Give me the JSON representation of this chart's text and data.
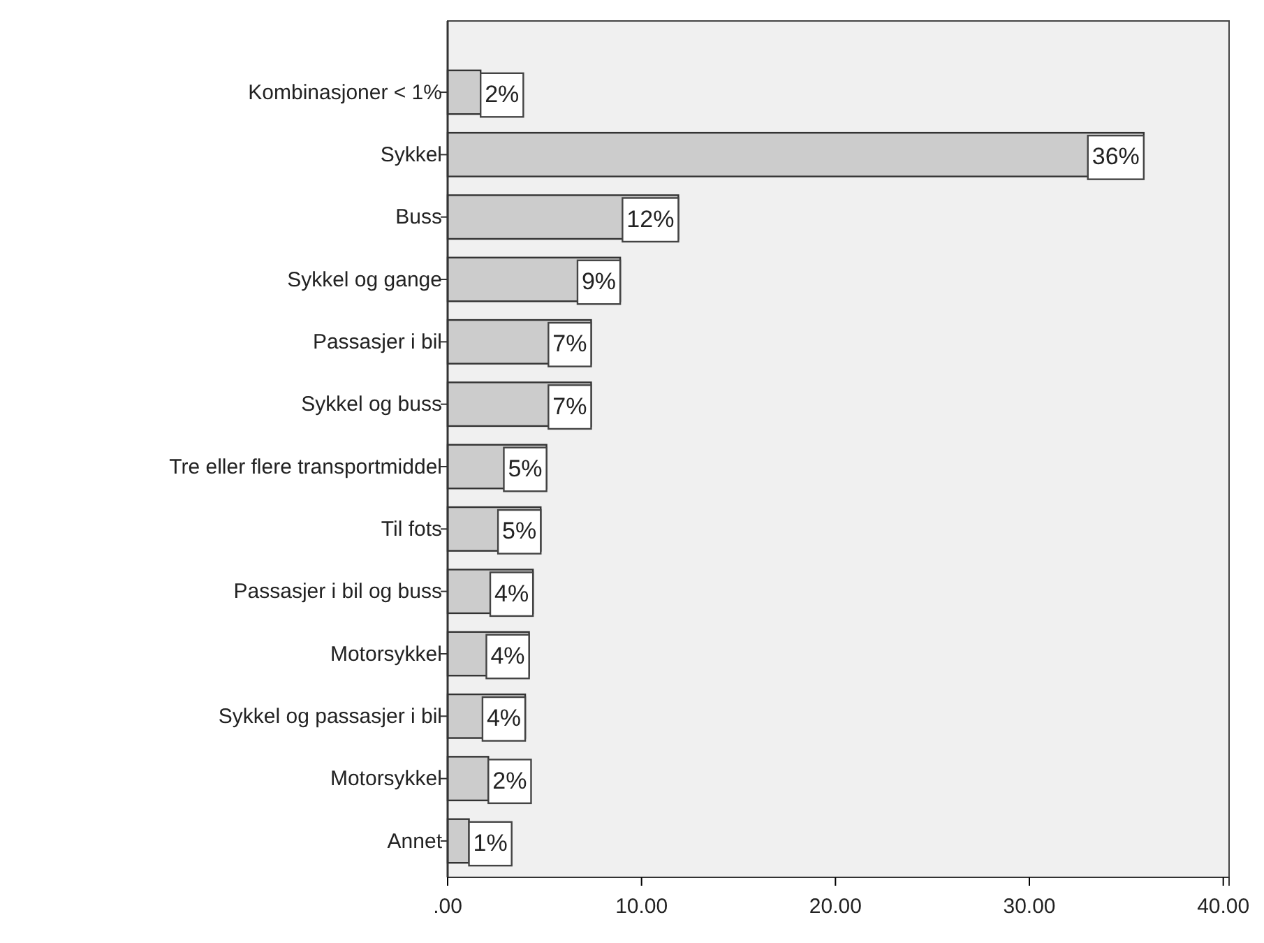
{
  "chart_data": {
    "type": "bar",
    "orientation": "horizontal",
    "categories": [
      "Kombinasjoner < 1%",
      "Sykkel",
      "Buss",
      "Sykkel og gange",
      "Passasjer i bil",
      "Sykkel og buss",
      "Tre eller flere transportmiddel",
      "Til fots",
      "Passasjer i bil og buss",
      "Motorsykkel",
      "Sykkel og passasjer i bil",
      "Motorsykkel",
      "Annet"
    ],
    "values": [
      1.7,
      35.9,
      11.9,
      8.9,
      7.4,
      7.4,
      5.1,
      4.8,
      4.4,
      4.2,
      4.0,
      2.1,
      1.1
    ],
    "value_labels": [
      "2%",
      "36%",
      "12%",
      "9%",
      "7%",
      "7%",
      "5%",
      "5%",
      "4%",
      "4%",
      "4%",
      "2%",
      "1%"
    ],
    "color": "#cccccc",
    "xlim": [
      0,
      40.3
    ],
    "xticks": [
      {
        "value": 0,
        "label": ".00"
      },
      {
        "value": 10,
        "label": "10.00"
      },
      {
        "value": 20,
        "label": "20.00"
      },
      {
        "value": 30,
        "label": "30.00"
      },
      {
        "value": 40,
        "label": "40.00"
      }
    ],
    "grid": false
  }
}
